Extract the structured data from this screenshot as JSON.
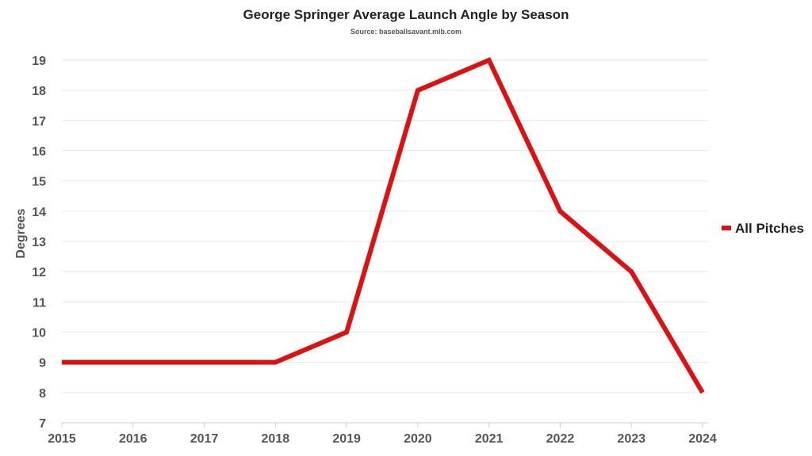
{
  "chart_data": {
    "type": "line",
    "title": "George Springer Average Launch Angle by Season",
    "subtitle": "Source: baseballsavant.mlb.com",
    "xlabel": "",
    "ylabel": "Degrees",
    "x": [
      "2015",
      "2016",
      "2017",
      "2018",
      "2019",
      "2020",
      "2021",
      "2022",
      "2023",
      "2024"
    ],
    "series": [
      {
        "name": "All Pitches",
        "color": "#dd1111",
        "values": [
          9,
          9,
          9,
          9,
          10,
          18,
          19,
          14,
          12,
          8
        ]
      }
    ],
    "ylim": [
      7,
      19
    ],
    "yticks": [
      "7",
      "8",
      "9",
      "10",
      "11",
      "12",
      "13",
      "14",
      "15",
      "16",
      "17",
      "18",
      "19"
    ],
    "grid": true,
    "legend": "right"
  }
}
